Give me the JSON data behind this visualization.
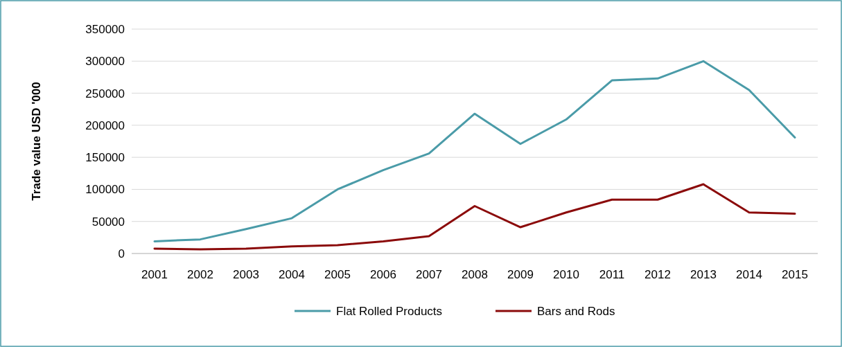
{
  "chart_data": {
    "type": "line",
    "ylabel": "Trade value USD '000",
    "categories": [
      "2001",
      "2002",
      "2003",
      "2004",
      "2005",
      "2006",
      "2007",
      "2008",
      "2009",
      "2010",
      "2011",
      "2012",
      "2013",
      "2014",
      "2015"
    ],
    "series": [
      {
        "name": "Flat Rolled Products",
        "color": "#4a9ba8",
        "values": [
          19000,
          22000,
          38000,
          55000,
          100000,
          130000,
          156000,
          218000,
          171000,
          209000,
          270000,
          273000,
          300000,
          255000,
          181000
        ]
      },
      {
        "name": "Bars and Rods",
        "color": "#8b0a0a",
        "values": [
          7500,
          6500,
          7500,
          11000,
          13000,
          19000,
          27000,
          74000,
          41000,
          64000,
          84000,
          84000,
          108000,
          64000,
          62000
        ]
      }
    ],
    "ylim": [
      0,
      350000
    ],
    "yticks": [
      0,
      50000,
      100000,
      150000,
      200000,
      250000,
      300000,
      350000
    ],
    "grid": "y",
    "legend": "bottom",
    "marker": "none",
    "line_style": "solid"
  }
}
